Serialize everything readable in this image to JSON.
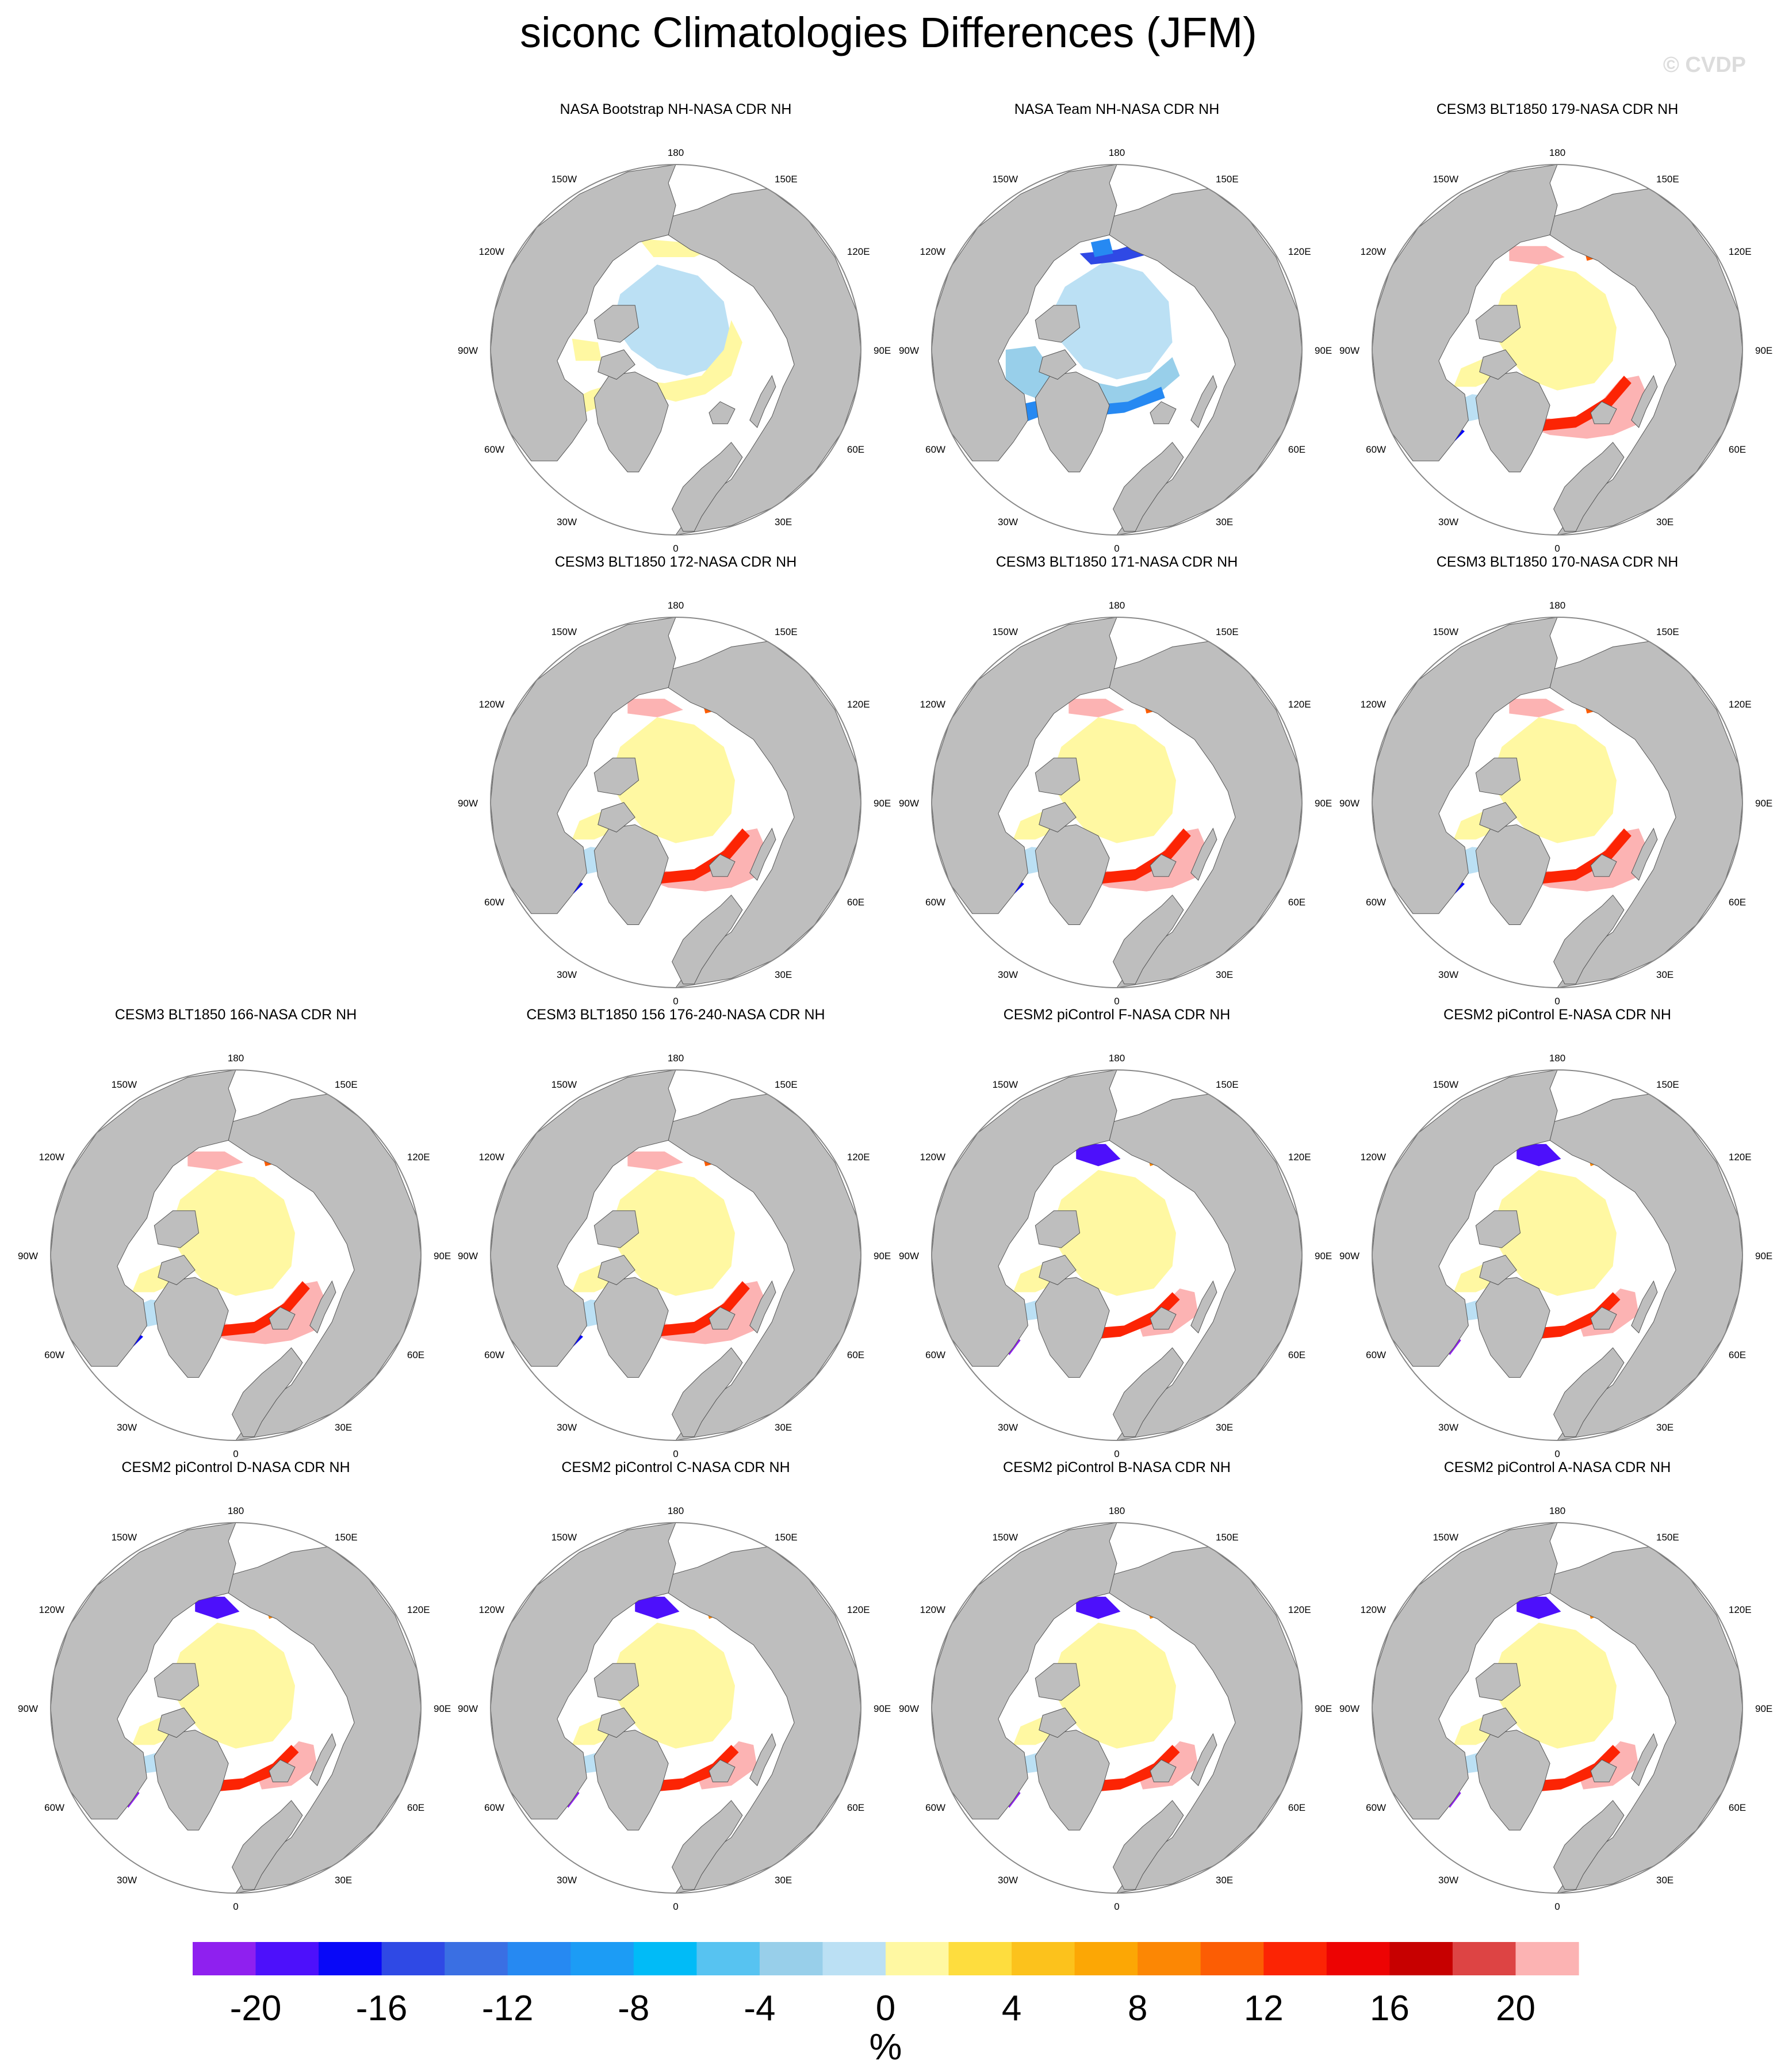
{
  "figure": {
    "title": "siconc Climatologies Differences (JFM)",
    "watermark": "© CVDP",
    "units": "%"
  },
  "colors": {
    "land": "#bebebe",
    "ocean": "#ffffff",
    "map_border": "#888888",
    "colorbar_levels": [
      "#8f20ef",
      "#4d10fb",
      "#0808f8",
      "#2f49e5",
      "#3a6fe3",
      "#2689f2",
      "#1c9cf5",
      "#01bbf7",
      "#57c3f1",
      "#98cfea",
      "#bbe0f4",
      "#fff8a2",
      "#fedd3e",
      "#fcc21c",
      "#fca705",
      "#fc8704",
      "#fc5d04",
      "#fc2404",
      "#ed0303",
      "#c70000",
      "#dd4444",
      "#fcb3b3"
    ]
  },
  "map_labels": {
    "top": "180",
    "bottom": "0",
    "upper_left": "150W",
    "upper_right": "150E",
    "left_upper": "120W",
    "right_upper": "120E",
    "left": "90W",
    "right": "90E",
    "left_lower": "60W",
    "right_lower": "60E",
    "lower_left": "30W",
    "lower_right": "30E"
  },
  "chart_data": {
    "type": "heatmap",
    "projection": "north polar stereographic",
    "variable": "siconc",
    "season": "JFM",
    "colorbar": {
      "tick_labels": [
        "-20",
        "-16",
        "-12",
        "-8",
        "-4",
        "0",
        "4",
        "8",
        "12",
        "16",
        "20"
      ],
      "ticks": [
        -20,
        -16,
        -12,
        -8,
        -4,
        0,
        4,
        8,
        12,
        16,
        20
      ],
      "levels": [
        -22,
        -20,
        -18,
        -16,
        -14,
        -12,
        -10,
        -8,
        -6,
        -4,
        -2,
        0,
        2,
        4,
        6,
        8,
        10,
        12,
        14,
        16,
        18,
        20,
        22
      ],
      "label": "%"
    },
    "panels": [
      {
        "title": "NASA Bootstrap NH-NASA CDR NH",
        "row": 0,
        "col": 1,
        "pattern": "bootstrap"
      },
      {
        "title": "NASA Team NH-NASA CDR NH",
        "row": 0,
        "col": 2,
        "pattern": "team"
      },
      {
        "title": "CESM3 BLT1850 179-NASA CDR NH",
        "row": 0,
        "col": 3,
        "pattern": "cesm3"
      },
      {
        "title": "CESM3 BLT1850 172-NASA CDR NH",
        "row": 1,
        "col": 1,
        "pattern": "cesm3"
      },
      {
        "title": "CESM3 BLT1850 171-NASA CDR NH",
        "row": 1,
        "col": 2,
        "pattern": "cesm3"
      },
      {
        "title": "CESM3 BLT1850 170-NASA CDR NH",
        "row": 1,
        "col": 3,
        "pattern": "cesm3"
      },
      {
        "title": "CESM3 BLT1850 166-NASA CDR NH",
        "row": 2,
        "col": 0,
        "pattern": "cesm3"
      },
      {
        "title": "CESM3 BLT1850 156 176-240-NASA CDR NH",
        "row": 2,
        "col": 1,
        "pattern": "cesm3"
      },
      {
        "title": "CESM2 piControl F-NASA CDR NH",
        "row": 2,
        "col": 2,
        "pattern": "cesm2"
      },
      {
        "title": "CESM2 piControl E-NASA CDR NH",
        "row": 2,
        "col": 3,
        "pattern": "cesm2"
      },
      {
        "title": "CESM2 piControl D-NASA CDR NH",
        "row": 3,
        "col": 0,
        "pattern": "cesm2"
      },
      {
        "title": "CESM2 piControl C-NASA CDR NH",
        "row": 3,
        "col": 1,
        "pattern": "cesm2"
      },
      {
        "title": "CESM2 piControl B-NASA CDR NH",
        "row": 3,
        "col": 2,
        "pattern": "cesm2"
      },
      {
        "title": "CESM2 piControl A-NASA CDR NH",
        "row": 3,
        "col": 3,
        "pattern": "cesm2"
      }
    ]
  }
}
